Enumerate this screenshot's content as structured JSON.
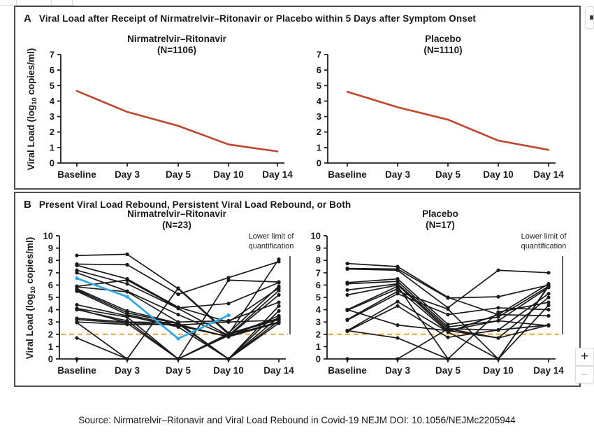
{
  "panel_a": {
    "label": "A",
    "title": "Viral Load after Receipt of Nirmatrelvir–Ritonavir or Placebo within 5 Days after Symptom Onset"
  },
  "panel_b": {
    "label": "B",
    "title": "Present Viral Load Rebound, Persistent Viral Load Rebound, or Both"
  },
  "ylabel": {
    "pre": "Viral Load (log",
    "sub": "10",
    "post": " copies/ml)"
  },
  "x_labels": [
    "Baseline",
    "Day 3",
    "Day 5",
    "Day 10",
    "Day 14"
  ],
  "llq": {
    "line1": "Lower limit of",
    "line2": "quantification"
  },
  "colors": {
    "red": "#c0462e",
    "blue": "#2aa7e5",
    "dashed_orange": "#f0a43c",
    "axis": "#231f20",
    "black_series": "#1a1a1a",
    "panel_border": "#4f4f4f"
  },
  "viewer": {
    "zoom_in": "+",
    "zoom_out": "−"
  },
  "source": "Source: Nirmatrelvir–Ritonavir and Viral Load Rebound in Covid-19 NEJM DOI: 10.1056/NEJMc2205944",
  "chart_data": [
    {
      "type": "line",
      "panel": "A",
      "title": "Nirmatrelvir–Ritonavir",
      "n_label": "(N=1106)",
      "x": [
        "Baseline",
        "Day 3",
        "Day 5",
        "Day 10",
        "Day 14"
      ],
      "ylim": [
        0,
        7
      ],
      "yticks": [
        0,
        1,
        2,
        3,
        4,
        5,
        6,
        7
      ],
      "markers": false,
      "series": [
        {
          "name": "mean-viral-load",
          "color": "red",
          "values": [
            4.65,
            3.3,
            2.4,
            1.2,
            0.75
          ]
        }
      ]
    },
    {
      "type": "line",
      "panel": "A",
      "title": "Placebo",
      "n_label": "(N=1110)",
      "x": [
        "Baseline",
        "Day 3",
        "Day 5",
        "Day 10",
        "Day 14"
      ],
      "ylim": [
        0,
        7
      ],
      "yticks": [
        0,
        1,
        2,
        3,
        4,
        5,
        6,
        7
      ],
      "markers": false,
      "series": [
        {
          "name": "mean-viral-load",
          "color": "red",
          "values": [
            4.6,
            3.6,
            2.8,
            1.45,
            0.85
          ]
        }
      ]
    },
    {
      "type": "line",
      "panel": "B",
      "title": "Nirmatrelvir–Ritonavir",
      "n_label": "(N=23)",
      "x": [
        "Baseline",
        "Day 3",
        "Day 5",
        "Day 10",
        "Day 14"
      ],
      "ylim": [
        0,
        10
      ],
      "yticks": [
        0,
        1,
        2,
        3,
        4,
        5,
        6,
        7,
        8,
        9,
        10
      ],
      "markers": true,
      "dashed_y": 2,
      "llq": true,
      "series": [
        {
          "name": "patient",
          "color": "black",
          "values": [
            8.4,
            8.5,
            5.7,
            2.0,
            8.1
          ]
        },
        {
          "name": "patient",
          "color": "black",
          "values": [
            7.7,
            7.65,
            5.25,
            6.6,
            7.9
          ]
        },
        {
          "name": "patient",
          "color": "black",
          "values": [
            7.6,
            6.5,
            4.2,
            3.0,
            5.75
          ]
        },
        {
          "name": "patient",
          "color": "black",
          "values": [
            7.2,
            6.1,
            4.1,
            1.9,
            5.55
          ]
        },
        {
          "name": "patient",
          "color": "black",
          "values": [
            7.0,
            5.5,
            3.6,
            1.85,
            5.2
          ]
        },
        {
          "name": "patient",
          "color": "black",
          "values": [
            5.85,
            5.45,
            3.0,
            3.1,
            4.6
          ]
        },
        {
          "name": "patient",
          "color": "black",
          "values": [
            5.7,
            3.9,
            2.9,
            0,
            4.3
          ]
        },
        {
          "name": "patient",
          "color": "black",
          "values": [
            5.6,
            3.75,
            2.85,
            0,
            3.9
          ]
        },
        {
          "name": "patient",
          "color": "black",
          "values": [
            5.5,
            3.6,
            2.7,
            1.8,
            3.5
          ]
        },
        {
          "name": "patient",
          "color": "black",
          "values": [
            4.4,
            3.5,
            2.6,
            0,
            3.4
          ]
        },
        {
          "name": "patient",
          "color": "black",
          "values": [
            4.1,
            3.4,
            0,
            6.4,
            6.25
          ]
        },
        {
          "name": "patient",
          "color": "black",
          "values": [
            4.0,
            3.1,
            0,
            2.0,
            3.2
          ]
        },
        {
          "name": "patient",
          "color": "black",
          "values": [
            3.3,
            3.0,
            2.95,
            0,
            3.1
          ]
        },
        {
          "name": "patient",
          "color": "black",
          "values": [
            3.2,
            2.9,
            0,
            1.9,
            3.0
          ]
        },
        {
          "name": "patient",
          "color": "black",
          "values": [
            3.0,
            2.8,
            2.8,
            1.8,
            2.95
          ]
        },
        {
          "name": "patient",
          "color": "black",
          "values": [
            2.95,
            0,
            5.75,
            2.1,
            5.9
          ]
        },
        {
          "name": "patient",
          "color": "black",
          "values": [
            1.7,
            0,
            0,
            2.05,
            3.3
          ]
        },
        {
          "name": "patient",
          "color": "black",
          "values": [
            0,
            0,
            0,
            0,
            2.9
          ]
        },
        {
          "name": "patient",
          "color": "black",
          "values": [
            5.9,
            6.4,
            4.15,
            4.5,
            6.2
          ]
        },
        {
          "name": "patient",
          "color": "black",
          "values": [
            4.05,
            2.95,
            2.75,
            3.0,
            3.15
          ]
        },
        {
          "name": "highlighted-rebound-patient",
          "color": "blue",
          "values": [
            6.55,
            5.05,
            1.65,
            3.55,
            null
          ]
        }
      ]
    },
    {
      "type": "line",
      "panel": "B",
      "title": "Placebo",
      "n_label": "(N=17)",
      "x": [
        "Baseline",
        "Day 3",
        "Day 5",
        "Day 10",
        "Day 14"
      ],
      "ylim": [
        0,
        10
      ],
      "yticks": [
        0,
        1,
        2,
        3,
        4,
        5,
        6,
        7,
        8,
        9,
        10
      ],
      "markers": true,
      "dashed_y": 2,
      "llq": true,
      "series": [
        {
          "name": "patient",
          "color": "black",
          "values": [
            7.75,
            7.5,
            5.0,
            3.6,
            6.1
          ]
        },
        {
          "name": "patient",
          "color": "black",
          "values": [
            7.35,
            7.3,
            4.95,
            5.05,
            6.0
          ]
        },
        {
          "name": "patient",
          "color": "black",
          "values": [
            7.3,
            7.2,
            4.15,
            7.2,
            7.0
          ]
        },
        {
          "name": "patient",
          "color": "black",
          "values": [
            6.2,
            6.5,
            2.8,
            3.4,
            5.9
          ]
        },
        {
          "name": "patient",
          "color": "black",
          "values": [
            6.1,
            6.3,
            2.6,
            3.1,
            5.8
          ]
        },
        {
          "name": "patient",
          "color": "black",
          "values": [
            5.6,
            6.1,
            2.45,
            2.35,
            5.3
          ]
        },
        {
          "name": "patient",
          "color": "black",
          "values": [
            5.2,
            6.0,
            2.3,
            1.7,
            5.0
          ]
        },
        {
          "name": "patient",
          "color": "black",
          "values": [
            4.0,
            5.9,
            0,
            3.8,
            4.6
          ]
        },
        {
          "name": "patient",
          "color": "black",
          "values": [
            3.95,
            5.7,
            2.2,
            0,
            5.95
          ]
        },
        {
          "name": "patient",
          "color": "black",
          "values": [
            3.2,
            5.5,
            4.05,
            0,
            4.35
          ]
        },
        {
          "name": "patient",
          "color": "black",
          "values": [
            3.15,
            5.3,
            3.6,
            4.15,
            4.0
          ]
        },
        {
          "name": "patient",
          "color": "black",
          "values": [
            2.3,
            4.65,
            2.2,
            3.6,
            3.5
          ]
        },
        {
          "name": "patient",
          "color": "black",
          "values": [
            2.25,
            4.3,
            1.75,
            2.35,
            2.75
          ]
        },
        {
          "name": "patient",
          "color": "black",
          "values": [
            4.0,
            2.75,
            2.3,
            3.1,
            2.7
          ]
        },
        {
          "name": "patient",
          "color": "black",
          "values": [
            2.3,
            1.7,
            0,
            0,
            5.9
          ]
        },
        {
          "name": "patient",
          "color": "black",
          "values": [
            0,
            0,
            2.45,
            1.7,
            2.75
          ]
        }
      ]
    }
  ]
}
